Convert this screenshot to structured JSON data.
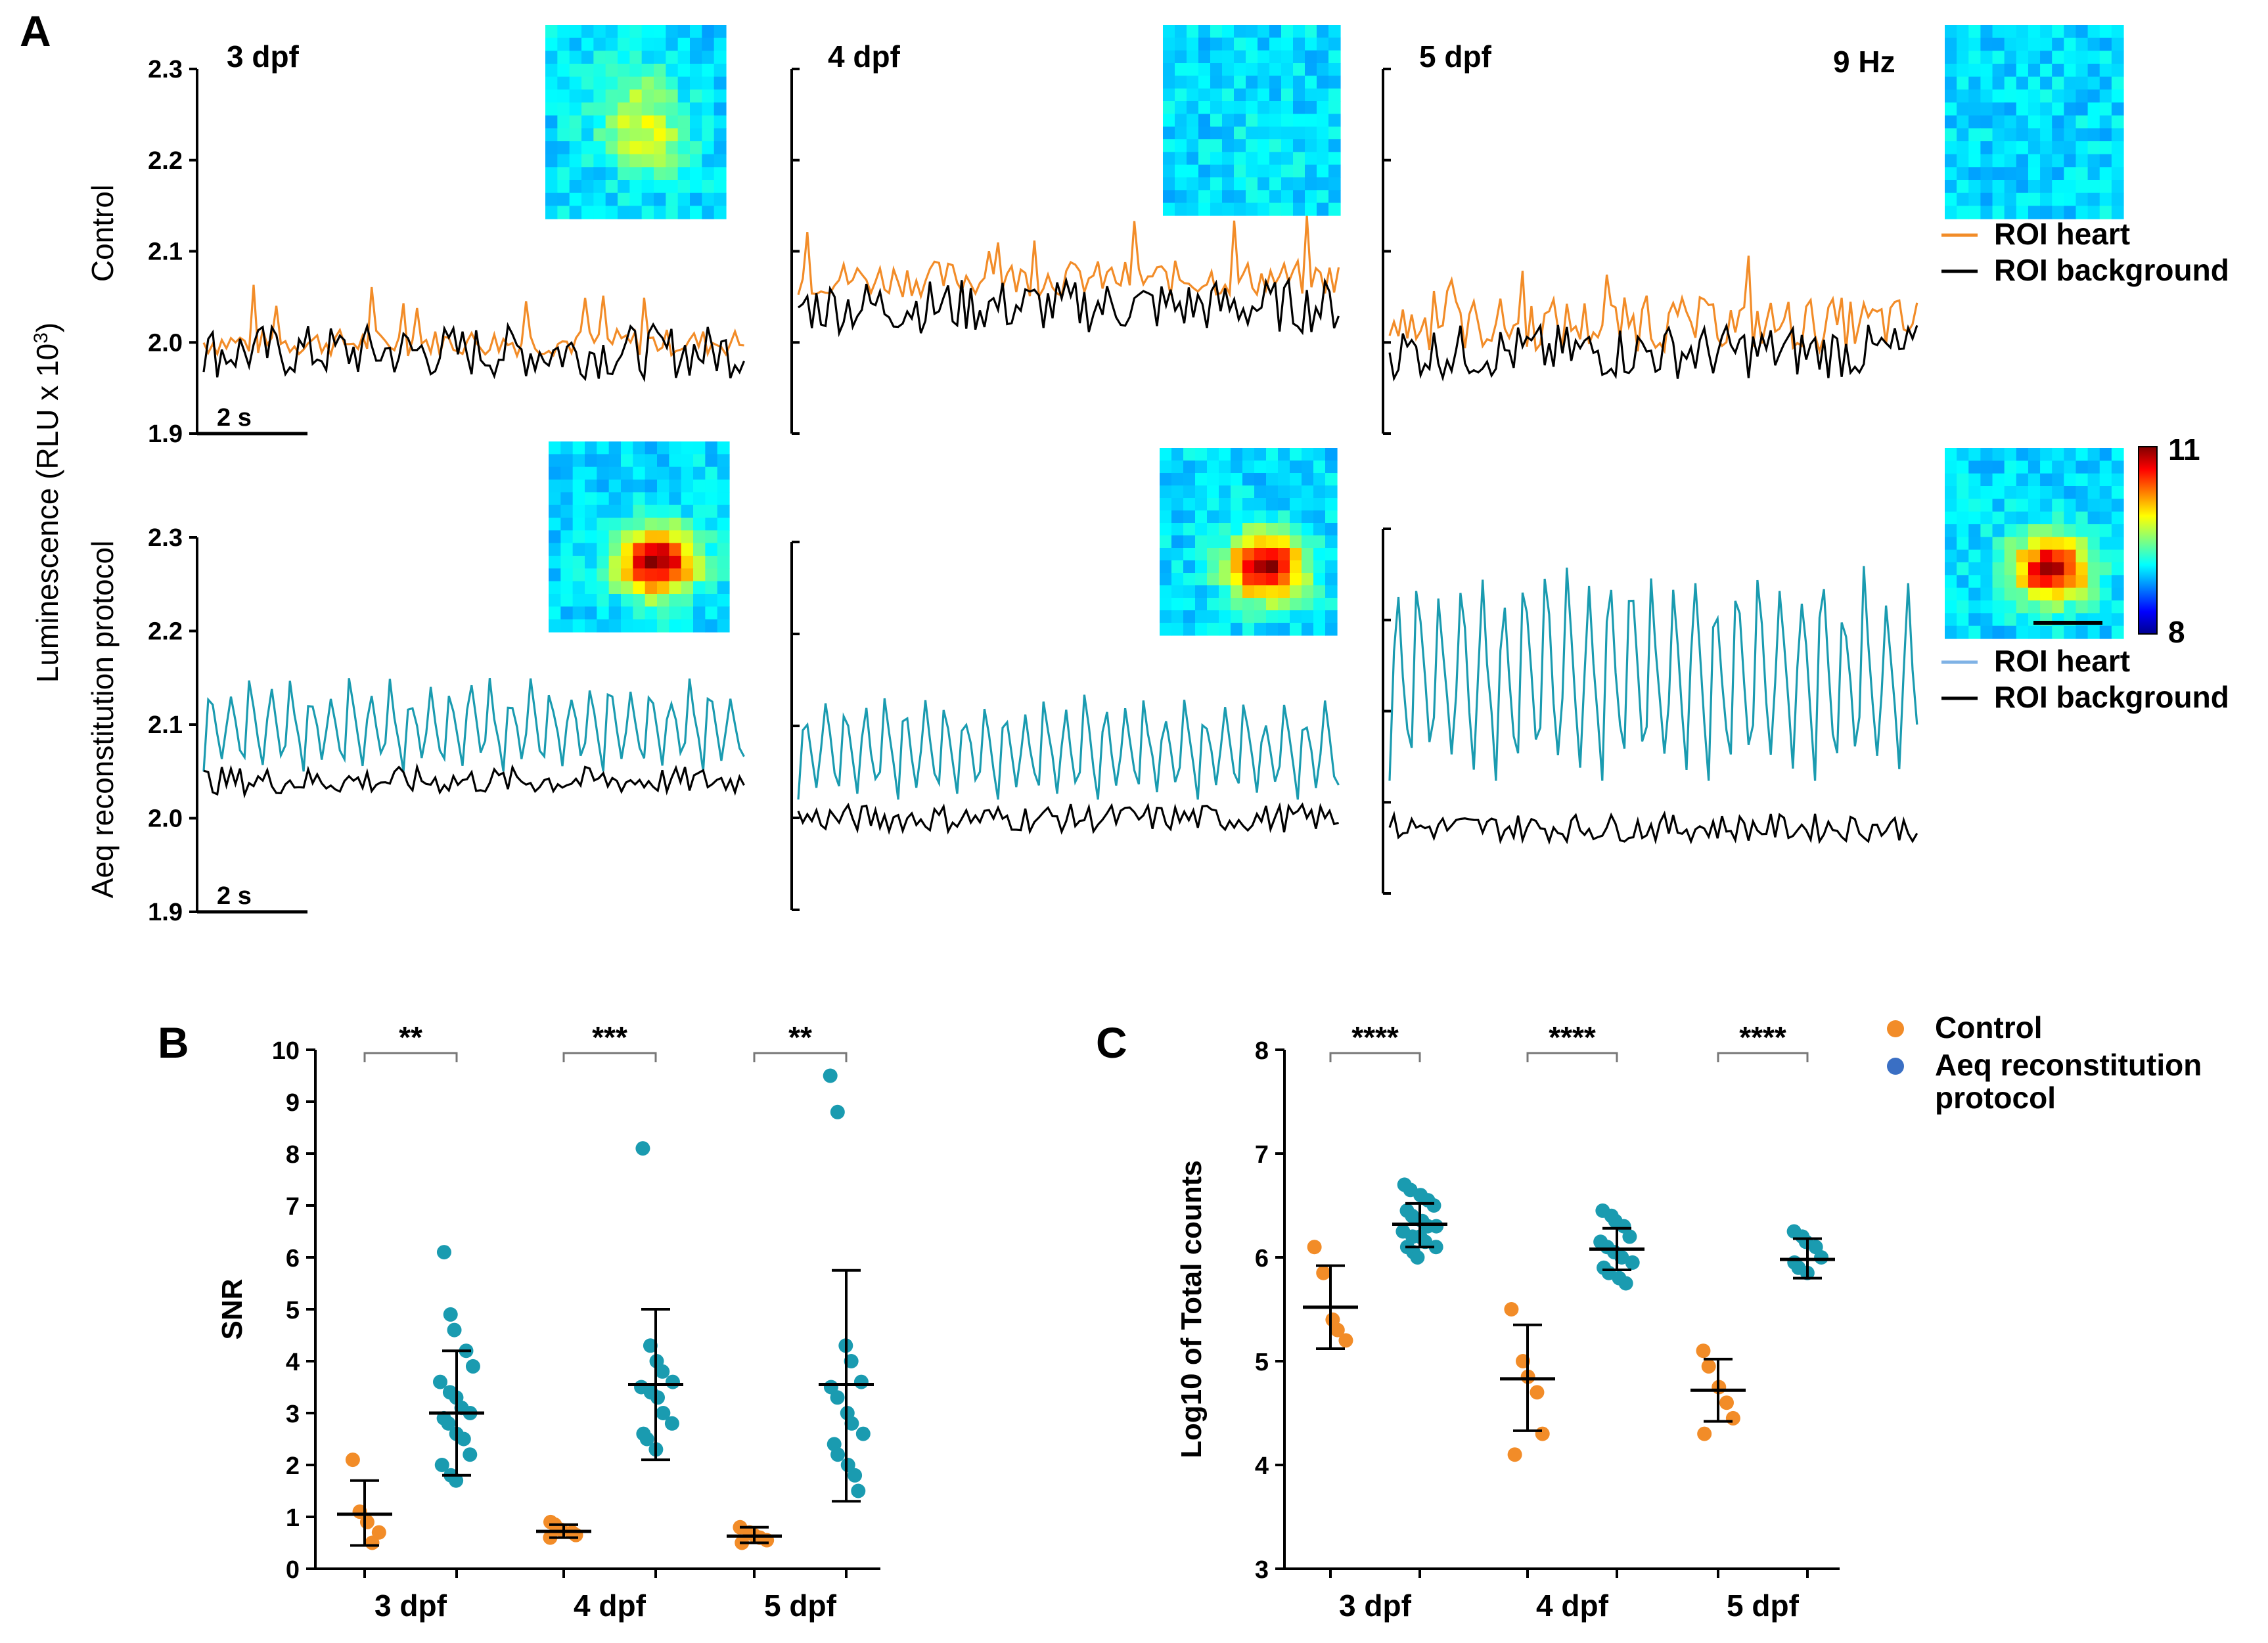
{
  "chart_data": {
    "panel_a": {
      "panel_label": "A",
      "type": "line",
      "y_axis_label": "Luminescence (RLU x 10",
      "y_axis_label_exp": "3",
      "y_axis_label_close": ")",
      "ylim": [
        1.9,
        2.3
      ],
      "y_ticks": [
        "1.9",
        "2.0",
        "2.1",
        "2.2",
        "2.3"
      ],
      "rows": [
        {
          "name": "Control",
          "scale_bar": "2 s",
          "legend": [
            {
              "label": "ROI heart",
              "color": "#F28C28"
            },
            {
              "label": "ROI background",
              "color": "#000000"
            }
          ],
          "series": [
            {
              "name": "ROI heart",
              "color": "#F28C28"
            },
            {
              "name": "ROI background",
              "color": "#000000"
            }
          ],
          "columns": [
            {
              "stage": "3 dpf",
              "heart_mean": 2.0,
              "heart_amp": 0.015,
              "background_mean": 1.99
            },
            {
              "stage": "4 dpf",
              "heart_mean": 2.07,
              "heart_amp": 0.02,
              "background_mean": 2.04
            },
            {
              "stage": "5 dpf",
              "extra_label": "9 Hz",
              "heart_mean": 2.02,
              "heart_amp": 0.03,
              "background_mean": 1.99
            }
          ]
        },
        {
          "name": "Aeq reconstitution protocol",
          "scale_bar": "2 s",
          "legend": [
            {
              "label": "ROI heart",
              "color": "#7FB2E5"
            },
            {
              "label": "ROI background",
              "color": "#000000"
            }
          ],
          "series": [
            {
              "name": "ROI heart",
              "color": "#1A9BB0"
            },
            {
              "name": "ROI background",
              "color": "#000000"
            }
          ],
          "colorbar": {
            "max_label": "11",
            "min_label": "8"
          },
          "columns": [
            {
              "stage": "3 dpf",
              "heart_min": 2.05,
              "heart_max": 2.15,
              "background_mean": 2.04
            },
            {
              "stage": "4 dpf",
              "heart_min": 2.02,
              "heart_max": 2.13,
              "background_mean": 2.0
            },
            {
              "stage": "5 dpf",
              "heart_min": 2.04,
              "heart_max": 2.27,
              "background_mean": 1.99
            }
          ]
        }
      ]
    },
    "panel_b": {
      "panel_label": "B",
      "type": "scatter",
      "ylabel": "SNR",
      "ylim": [
        0,
        10
      ],
      "y_ticks": [
        "0",
        "1",
        "2",
        "3",
        "4",
        "5",
        "6",
        "7",
        "8",
        "9",
        "10"
      ],
      "categories": [
        "3 dpf",
        "4 dpf",
        "5 dpf"
      ],
      "significance": [
        "**",
        "***",
        "**"
      ],
      "series": [
        {
          "name": "Control",
          "color": "#F28C28",
          "groups": [
            {
              "points": [
                2.1,
                1.1,
                0.9,
                0.5,
                0.7
              ],
              "mean": 1.05,
              "sd_low": 0.45,
              "sd_high": 1.7
            },
            {
              "points": [
                0.9,
                0.85,
                0.75,
                0.7,
                0.65,
                0.6
              ],
              "mean": 0.72,
              "sd_low": 0.6,
              "sd_high": 0.85
            },
            {
              "points": [
                0.8,
                0.7,
                0.65,
                0.6,
                0.55,
                0.5
              ],
              "mean": 0.63,
              "sd_low": 0.5,
              "sd_high": 0.8
            }
          ]
        },
        {
          "name": "Aeq reconstitution protocol",
          "color": "#1A9BB0",
          "groups": [
            {
              "points": [
                6.1,
                4.9,
                4.6,
                4.2,
                3.9,
                3.6,
                3.4,
                3.3,
                3.1,
                3.0,
                2.9,
                2.8,
                2.6,
                2.5,
                2.2,
                2.0,
                1.8,
                1.7
              ],
              "mean": 3.0,
              "sd_low": 1.8,
              "sd_high": 4.2
            },
            {
              "points": [
                8.1,
                4.3,
                4.0,
                3.8,
                3.6,
                3.5,
                3.4,
                3.3,
                3.0,
                2.8,
                2.6,
                2.5,
                2.3
              ],
              "mean": 3.55,
              "sd_low": 2.1,
              "sd_high": 5.0
            },
            {
              "points": [
                9.5,
                8.8,
                4.3,
                4.0,
                3.6,
                3.5,
                3.3,
                3.0,
                2.8,
                2.6,
                2.4,
                2.2,
                2.0,
                1.8,
                1.5
              ],
              "mean": 3.55,
              "sd_low": 1.3,
              "sd_high": 5.75
            }
          ]
        }
      ]
    },
    "panel_c": {
      "panel_label": "C",
      "type": "scatter",
      "ylabel": "Log10 of Total counts",
      "ylim": [
        3,
        8
      ],
      "y_ticks": [
        "3",
        "4",
        "5",
        "6",
        "7",
        "8"
      ],
      "categories": [
        "3 dpf",
        "4 dpf",
        "5 dpf"
      ],
      "significance": [
        "****",
        "****",
        "****"
      ],
      "legend": [
        {
          "label": "Control",
          "color": "#F28C28"
        },
        {
          "label": "Aeq reconstitution protocol",
          "color": "#3A6FC4"
        }
      ],
      "series": [
        {
          "name": "Control",
          "color": "#F28C28",
          "groups": [
            {
              "points": [
                6.1,
                5.85,
                5.4,
                5.3,
                5.2
              ],
              "mean": 5.52,
              "sd_low": 5.12,
              "sd_high": 5.92
            },
            {
              "points": [
                5.5,
                5.0,
                4.85,
                4.7,
                4.3,
                4.1
              ],
              "mean": 4.83,
              "sd_low": 4.33,
              "sd_high": 5.35
            },
            {
              "points": [
                5.1,
                4.95,
                4.75,
                4.6,
                4.45,
                4.3
              ],
              "mean": 4.72,
              "sd_low": 4.42,
              "sd_high": 5.02
            }
          ]
        },
        {
          "name": "Aeq reconstitution protocol",
          "color": "#1A9BB0",
          "groups": [
            {
              "points": [
                6.7,
                6.65,
                6.6,
                6.55,
                6.5,
                6.45,
                6.4,
                6.35,
                6.3,
                6.3,
                6.25,
                6.2,
                6.2,
                6.15,
                6.1,
                6.1,
                6.05,
                6.0
              ],
              "mean": 6.32,
              "sd_low": 6.1,
              "sd_high": 6.52
            },
            {
              "points": [
                6.45,
                6.4,
                6.35,
                6.3,
                6.2,
                6.15,
                6.1,
                6.05,
                6.0,
                5.95,
                5.9,
                5.85,
                5.8,
                5.75
              ],
              "mean": 6.08,
              "sd_low": 5.88,
              "sd_high": 6.28
            },
            {
              "points": [
                6.25,
                6.2,
                6.15,
                6.1,
                6.0,
                5.95,
                5.9,
                5.85
              ],
              "mean": 5.98,
              "sd_low": 5.8,
              "sd_high": 6.18
            }
          ]
        }
      ]
    }
  }
}
